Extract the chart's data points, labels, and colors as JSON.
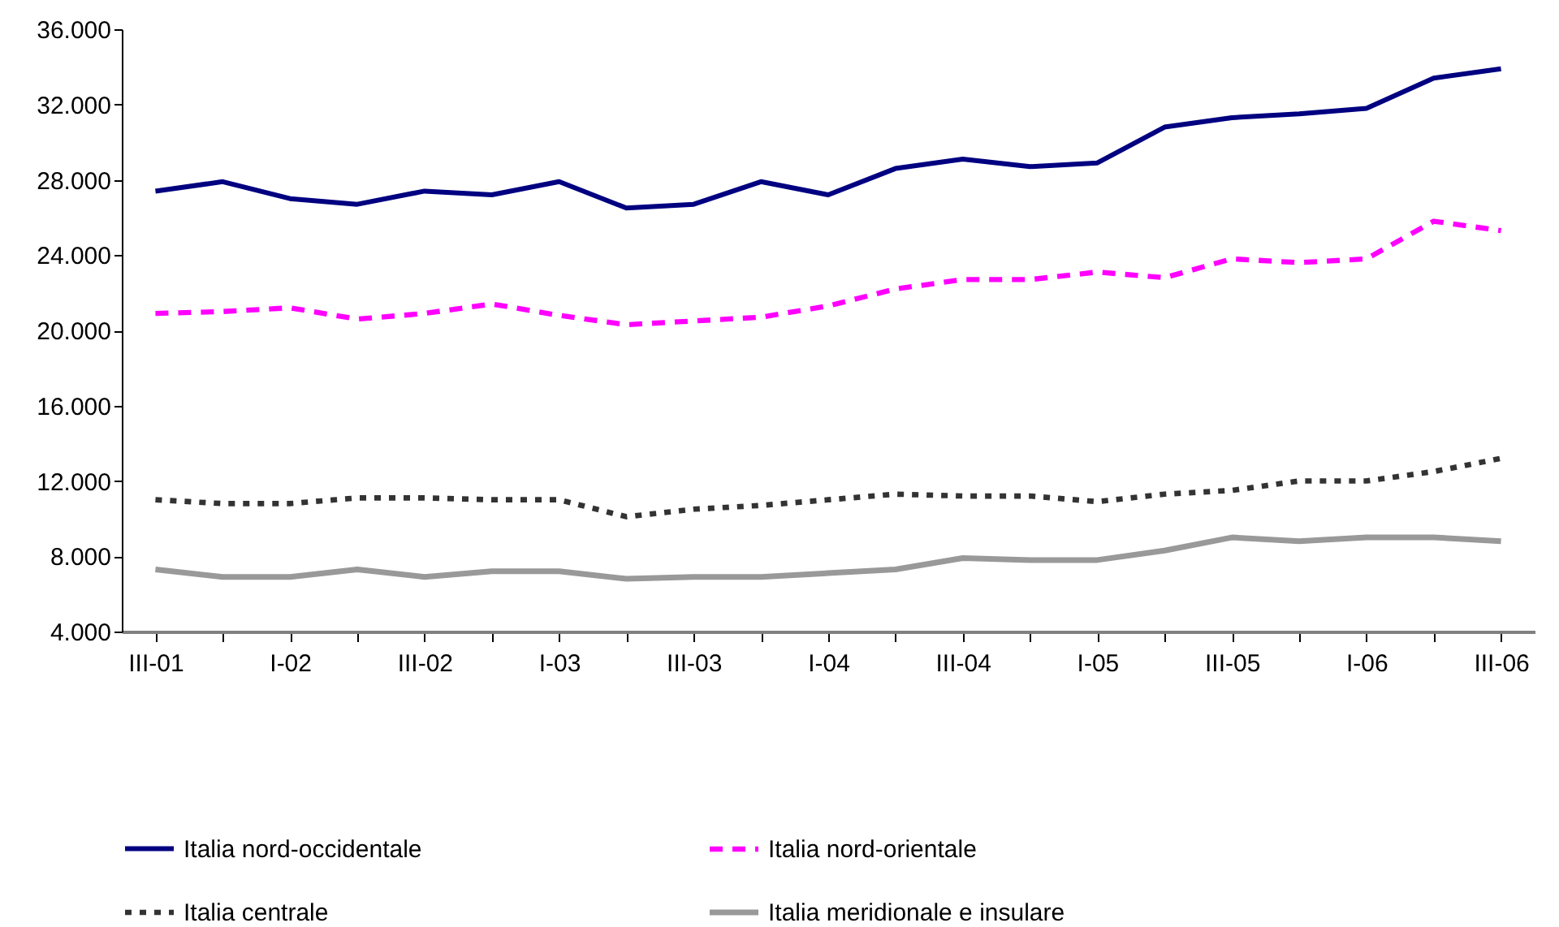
{
  "chart_data": {
    "type": "line",
    "categories": [
      "III-01",
      null,
      "I-02",
      null,
      "III-02",
      null,
      "I-03",
      null,
      "III-03",
      null,
      "I-04",
      null,
      "III-04",
      null,
      "I-05",
      null,
      "III-05",
      null,
      "I-06",
      null,
      "III-06"
    ],
    "series": [
      {
        "name": "Italia nord-occidentale",
        "color": "#000080",
        "line_style": "solid",
        "values": [
          27400,
          27900,
          27000,
          26700,
          27400,
          27200,
          27900,
          26500,
          26700,
          27900,
          27200,
          28600,
          29100,
          28700,
          28900,
          30800,
          31300,
          31500,
          31800,
          33400,
          33900
        ]
      },
      {
        "name": "Italia nord-orientale",
        "color": "#ff00ff",
        "line_style": "dashed",
        "values": [
          20900,
          21000,
          21200,
          20600,
          20900,
          21400,
          20800,
          20300,
          20500,
          20700,
          21300,
          22200,
          22700,
          22700,
          23100,
          22800,
          23800,
          23600,
          23800,
          25800,
          25300
        ]
      },
      {
        "name": "Italia centrale",
        "color": "#333333",
        "line_style": "dotted",
        "values": [
          11000,
          10800,
          10800,
          11100,
          11100,
          11000,
          11000,
          10100,
          10500,
          10700,
          11000,
          11300,
          11200,
          11200,
          10900,
          11300,
          11500,
          12000,
          12000,
          12500,
          13200
        ]
      },
      {
        "name": "Italia meridionale e insulare",
        "color": "#999999",
        "line_style": "solid",
        "values": [
          7300,
          6900,
          6900,
          7300,
          6900,
          7200,
          7200,
          6800,
          6900,
          6900,
          7100,
          7300,
          7900,
          7800,
          7800,
          8300,
          9000,
          8800,
          9000,
          9000,
          8800
        ]
      }
    ],
    "ylim": [
      4000,
      36000
    ],
    "yticks": [
      {
        "value": 4000,
        "label": "4.000"
      },
      {
        "value": 8000,
        "label": "8.000"
      },
      {
        "value": 12000,
        "label": "12.000"
      },
      {
        "value": 16000,
        "label": "16.000"
      },
      {
        "value": 20000,
        "label": "20.000"
      },
      {
        "value": 24000,
        "label": "24.000"
      },
      {
        "value": 28000,
        "label": "28.000"
      },
      {
        "value": 32000,
        "label": "32.000"
      },
      {
        "value": 36000,
        "label": "36.000"
      }
    ],
    "grid": false,
    "legend": "bottom",
    "marker": "none"
  }
}
